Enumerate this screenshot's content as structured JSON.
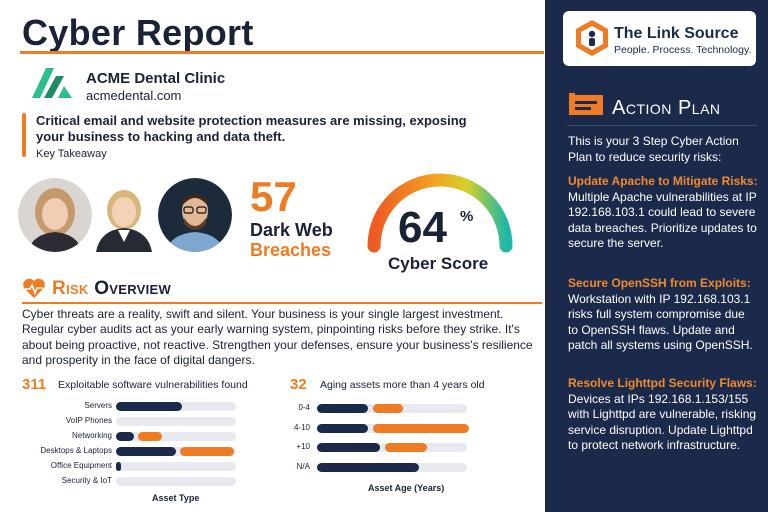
{
  "title": "Cyber Report",
  "company": {
    "name": "ACME Dental Clinic",
    "website": "acmedental.com"
  },
  "takeaway": {
    "text": "Critical email and website protection measures are missing, exposing your business to hacking and data theft.",
    "label": "Key Takeaway"
  },
  "breaches": {
    "count": "57",
    "line1": "Dark Web",
    "line2": "Breaches"
  },
  "cyber_score": {
    "value": "64",
    "unit": "%",
    "label": "Cyber Score",
    "fraction": 0.64
  },
  "risk_overview": {
    "title_first": "R",
    "title_rest": "isk ",
    "title_second": "O",
    "title_rest2": "verview",
    "paragraph": "Cyber threats are a reality, swift and silent. Your business is your single largest investment. Regular cyber audits act as your early warning system, pinpointing risks before they strike. It's about being proactive, not reactive. Strengthen your defenses, ensure your business's resilience and prosperity in the face of digital dangers."
  },
  "stats": {
    "vulns": {
      "count": "311",
      "label": "Exploitable software vulnerabilities found"
    },
    "aging": {
      "count": "32",
      "label": "Aging assets more than 4 years old"
    }
  },
  "chart_data": [
    {
      "type": "bar",
      "xlabel": "Asset Type",
      "categories": [
        "Servers",
        "VoIP Phones",
        "Networking",
        "Desktops & Laptops",
        "Office Equipment",
        "Security & IoT"
      ],
      "series": [
        {
          "color": "#1b2a4a",
          "values": [
            0.55,
            0,
            0.15,
            0.5,
            0.04,
            0
          ]
        },
        {
          "color": "#ef7b22",
          "values": [
            0,
            0,
            0.2,
            0.45,
            0,
            0
          ]
        }
      ]
    },
    {
      "type": "bar",
      "xlabel": "Asset Age (Years)",
      "categories": [
        "0-4",
        "4-10",
        "+10",
        "N/A"
      ],
      "series": [
        {
          "color": "#1b2a4a",
          "values": [
            0.34,
            0.34,
            0.42,
            0.68
          ]
        },
        {
          "color": "#ef7b22",
          "values": [
            0.2,
            0.64,
            0.28,
            0
          ]
        }
      ]
    }
  ],
  "sidebar": {
    "brand_name": "The Link Source",
    "brand_tagline": "People. Process. Technology.",
    "action_title": "Action Plan",
    "intro": "This is your 3 Step Cyber Action Plan to reduce security risks:",
    "items": [
      {
        "heading": "Update Apache to Mitigate Risks:",
        "body": " Multiple Apache vulnerabilities at IP 192.168.103.1 could lead to severe data breaches. Prioritize updates to secure the server."
      },
      {
        "heading": "Secure OpenSSH from Exploits:",
        "body": " Workstation with IP 192.168.103.1 risks full system compromise due to OpenSSH flaws. Update and patch all systems using OpenSSH."
      },
      {
        "heading": "Resolve Lighttpd Security Flaws:",
        "body": " Devices at IPs 192.168.1.153/155 with Lighttpd are vulnerable, risking service disruption. Update Lighttpd to protect network infrastructure."
      }
    ]
  },
  "colors": {
    "navy": "#1b2a4a",
    "orange": "#ef7b22",
    "teal": "#1fb8a5"
  },
  "icons": [
    "acme-logo",
    "person-avatar",
    "heartbeat-icon",
    "sign-board-icon",
    "link-source-logo"
  ]
}
